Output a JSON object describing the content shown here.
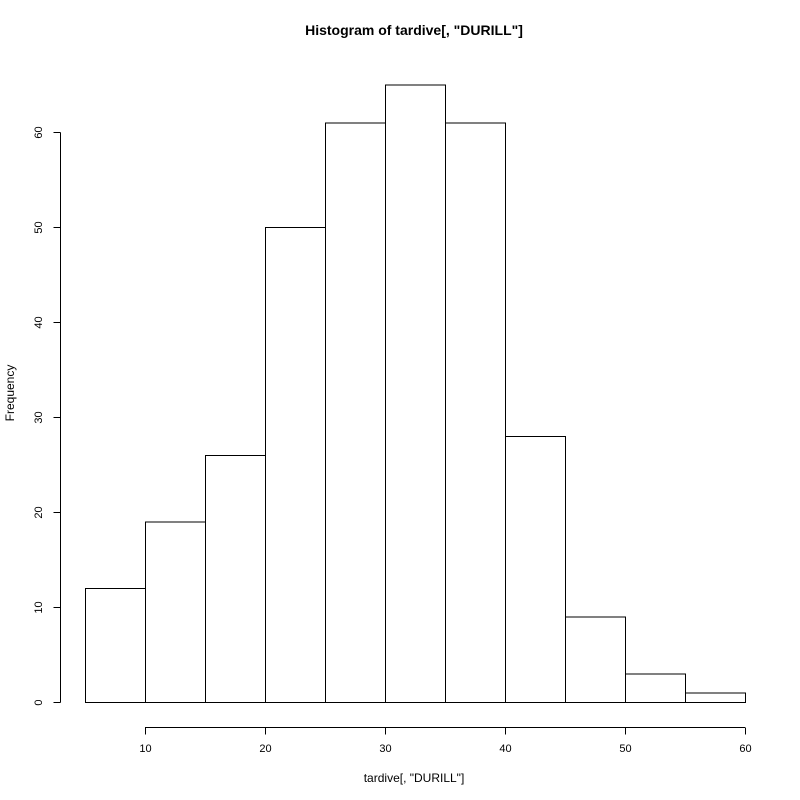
{
  "chart_data": {
    "type": "bar",
    "title": "Histogram of tardive[, \"DURILL\"]",
    "xlabel": "tardive[, \"DURILL\"]",
    "ylabel": "Frequency",
    "bins": [
      {
        "start": 5,
        "end": 10,
        "count": 12
      },
      {
        "start": 10,
        "end": 15,
        "count": 19
      },
      {
        "start": 15,
        "end": 20,
        "count": 26
      },
      {
        "start": 20,
        "end": 25,
        "count": 50
      },
      {
        "start": 25,
        "end": 30,
        "count": 61
      },
      {
        "start": 30,
        "end": 35,
        "count": 65
      },
      {
        "start": 35,
        "end": 40,
        "count": 61
      },
      {
        "start": 40,
        "end": 45,
        "count": 28
      },
      {
        "start": 45,
        "end": 50,
        "count": 9
      },
      {
        "start": 50,
        "end": 55,
        "count": 3
      },
      {
        "start": 55,
        "end": 60,
        "count": 1
      }
    ],
    "xticks": [
      10,
      20,
      30,
      40,
      50,
      60
    ],
    "yticks": [
      0,
      10,
      20,
      30,
      40,
      50,
      60
    ],
    "xlim": [
      5,
      60
    ],
    "ylim": [
      0,
      65
    ],
    "grid": false,
    "legend": "none"
  }
}
